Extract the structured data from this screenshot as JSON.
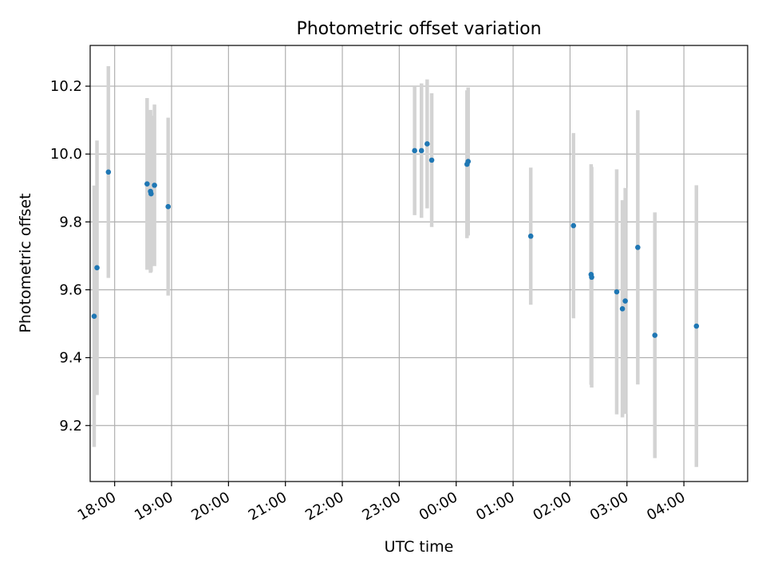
{
  "chart_data": {
    "type": "scatter",
    "title": "Photometric offset variation",
    "xlabel": "UTC time",
    "ylabel": "Photometric offset",
    "x_unit": "hours since 00:00 UTC (negative = previous day)",
    "xlim": [
      -6.43,
      5.12
    ],
    "ylim": [
      9.035,
      10.32
    ],
    "grid": true,
    "x_ticks": [
      {
        "value": -6,
        "label": "18:00"
      },
      {
        "value": -5,
        "label": "19:00"
      },
      {
        "value": -4,
        "label": "20:00"
      },
      {
        "value": -3,
        "label": "21:00"
      },
      {
        "value": -2,
        "label": "22:00"
      },
      {
        "value": -1,
        "label": "23:00"
      },
      {
        "value": 0,
        "label": "00:00"
      },
      {
        "value": 1,
        "label": "01:00"
      },
      {
        "value": 2,
        "label": "02:00"
      },
      {
        "value": 3,
        "label": "03:00"
      },
      {
        "value": 4,
        "label": "04:00"
      }
    ],
    "y_ticks": [
      {
        "value": 9.2,
        "label": "9.2"
      },
      {
        "value": 9.4,
        "label": "9.4"
      },
      {
        "value": 9.6,
        "label": "9.6"
      },
      {
        "value": 9.8,
        "label": "9.8"
      },
      {
        "value": 10.0,
        "label": "10.0"
      },
      {
        "value": 10.2,
        "label": "10.2"
      }
    ],
    "point_color": "#1f77b4",
    "errorbar_color": "#d3d3d3",
    "points": [
      {
        "x": -6.36,
        "y": 9.522,
        "err": 0.385
      },
      {
        "x": -6.31,
        "y": 9.665,
        "err": 0.375
      },
      {
        "x": -6.11,
        "y": 9.947,
        "err": 0.312
      },
      {
        "x": -5.43,
        "y": 9.912,
        "err": 0.253
      },
      {
        "x": -5.37,
        "y": 9.89,
        "err": 0.24
      },
      {
        "x": -5.36,
        "y": 9.883,
        "err": 0.23
      },
      {
        "x": -5.3,
        "y": 9.908,
        "err": 0.238
      },
      {
        "x": -5.06,
        "y": 9.845,
        "err": 0.262
      },
      {
        "x": -0.73,
        "y": 10.01,
        "err": 0.19
      },
      {
        "x": -0.61,
        "y": 10.01,
        "err": 0.198
      },
      {
        "x": -0.51,
        "y": 10.03,
        "err": 0.19
      },
      {
        "x": -0.43,
        "y": 9.982,
        "err": 0.197
      },
      {
        "x": 0.19,
        "y": 9.97,
        "err": 0.218
      },
      {
        "x": 0.21,
        "y": 9.978,
        "err": 0.218
      },
      {
        "x": 1.31,
        "y": 9.758,
        "err": 0.202
      },
      {
        "x": 2.06,
        "y": 9.789,
        "err": 0.273
      },
      {
        "x": 2.37,
        "y": 9.645,
        "err": 0.325
      },
      {
        "x": 2.38,
        "y": 9.637,
        "err": 0.325
      },
      {
        "x": 2.82,
        "y": 9.594,
        "err": 0.361
      },
      {
        "x": 2.92,
        "y": 9.544,
        "err": 0.32
      },
      {
        "x": 2.97,
        "y": 9.567,
        "err": 0.333
      },
      {
        "x": 3.19,
        "y": 9.725,
        "err": 0.404
      },
      {
        "x": 3.49,
        "y": 9.466,
        "err": 0.362
      },
      {
        "x": 4.22,
        "y": 9.493,
        "err": 0.415
      }
    ]
  }
}
